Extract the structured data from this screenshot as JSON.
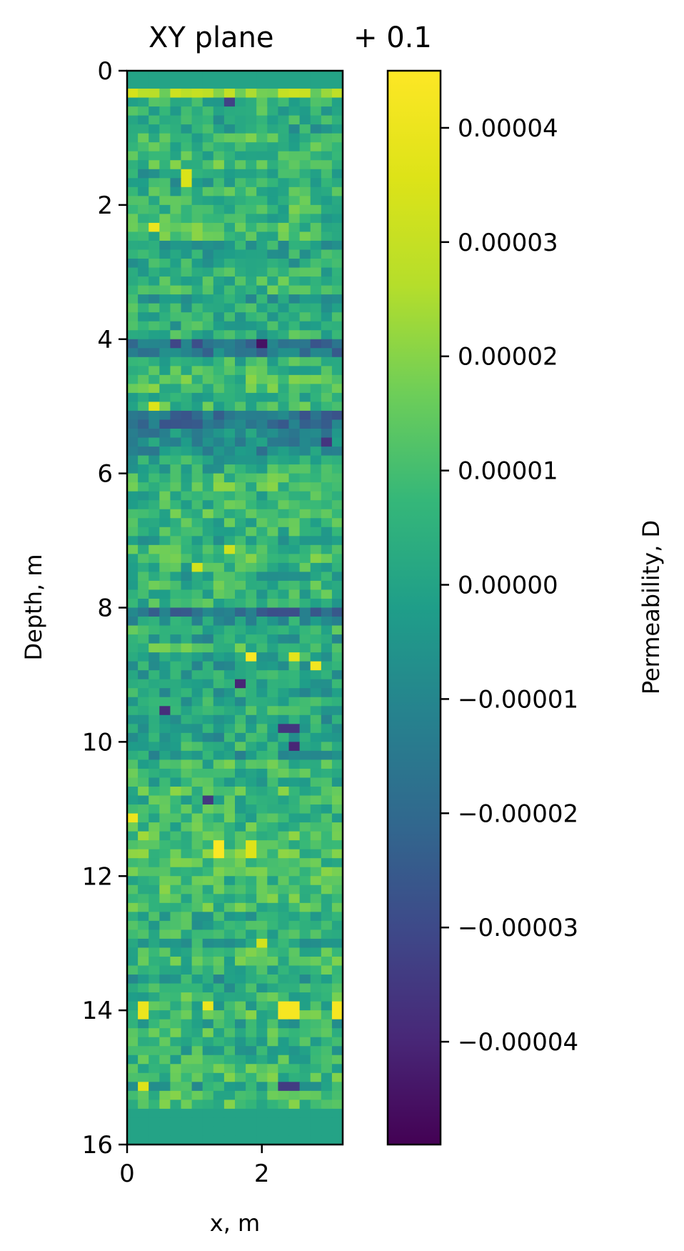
{
  "chart_data": {
    "type": "heatmap",
    "title": "XY plane",
    "offset_label": "+ 0.1",
    "xlabel": "x, m",
    "ylabel": "Depth, m",
    "xlim": [
      0,
      3.2
    ],
    "ylim": [
      16,
      0
    ],
    "x_ticks": [
      {
        "value": 0,
        "label": "0"
      },
      {
        "value": 2,
        "label": "2"
      }
    ],
    "y_ticks": [
      {
        "value": 0,
        "label": "0"
      },
      {
        "value": 2,
        "label": "2"
      },
      {
        "value": 4,
        "label": "4"
      },
      {
        "value": 6,
        "label": "6"
      },
      {
        "value": 8,
        "label": "8"
      },
      {
        "value": 10,
        "label": "10"
      },
      {
        "value": 12,
        "label": "12"
      },
      {
        "value": 14,
        "label": "14"
      },
      {
        "value": 16,
        "label": "16"
      }
    ],
    "grid": {
      "columns": 20,
      "rows": 120,
      "cell_width_m": 0.16,
      "cell_height_m": 0.1333
    },
    "colormap": "viridis",
    "colorbar": {
      "label": "Permeability, D",
      "range": [
        -4.9e-05,
        4.5e-05
      ],
      "ticks": [
        {
          "value": 4e-05,
          "label": "0.00004"
        },
        {
          "value": 3e-05,
          "label": "0.00003"
        },
        {
          "value": 2e-05,
          "label": "0.00002"
        },
        {
          "value": 1e-05,
          "label": "0.00001"
        },
        {
          "value": 0.0,
          "label": "0.00000"
        },
        {
          "value": -1e-05,
          "label": "−0.00001"
        },
        {
          "value": -2e-05,
          "label": "−0.00002"
        },
        {
          "value": -3e-05,
          "label": "−0.00003"
        },
        {
          "value": -4e-05,
          "label": "−0.00004"
        }
      ]
    },
    "layer_means": [
      {
        "depth_from": 0.0,
        "depth_to": 0.3,
        "value": 0.0
      },
      {
        "depth_from": 0.3,
        "depth_to": 0.45,
        "value": 2.2e-05
      },
      {
        "depth_from": 0.45,
        "depth_to": 4.0,
        "value": 5e-06
      },
      {
        "depth_from": 4.0,
        "depth_to": 4.2,
        "value": -2e-05
      },
      {
        "depth_from": 4.2,
        "depth_to": 5.1,
        "value": 8e-06
      },
      {
        "depth_from": 5.1,
        "depth_to": 5.7,
        "value": -1.2e-05
      },
      {
        "depth_from": 5.7,
        "depth_to": 8.0,
        "value": 6e-06
      },
      {
        "depth_from": 8.0,
        "depth_to": 8.15,
        "value": -2.2e-05
      },
      {
        "depth_from": 8.15,
        "depth_to": 10.4,
        "value": 3e-06
      },
      {
        "depth_from": 10.4,
        "depth_to": 12.4,
        "value": 9e-06
      },
      {
        "depth_from": 12.4,
        "depth_to": 15.5,
        "value": 5e-06
      },
      {
        "depth_from": 15.5,
        "depth_to": 16.0,
        "value": 0.0
      }
    ],
    "high_cells": [
      {
        "x": 0.4,
        "depth": 2.3,
        "value": 4e-05
      },
      {
        "x": 0.9,
        "depth": 1.6,
        "value": 3.5e-05
      },
      {
        "x": 0.4,
        "depth": 5.0,
        "value": 3.6e-05
      },
      {
        "x": 1.5,
        "depth": 7.1,
        "value": 3.2e-05
      },
      {
        "x": 1.0,
        "depth": 7.45,
        "value": 3.3e-05
      },
      {
        "x": 1.85,
        "depth": 8.7,
        "value": 4.4e-05
      },
      {
        "x": 2.5,
        "depth": 8.7,
        "value": 3.8e-05
      },
      {
        "x": 2.85,
        "depth": 8.85,
        "value": 4.2e-05
      },
      {
        "x": 1.35,
        "depth": 11.6,
        "value": 4.4e-05
      },
      {
        "x": 1.85,
        "depth": 11.6,
        "value": 3.6e-05
      },
      {
        "x": 0.1,
        "depth": 11.1,
        "value": 4e-05
      },
      {
        "x": 1.2,
        "depth": 13.9,
        "value": 4e-05
      },
      {
        "x": 2.4,
        "depth": 14.0,
        "value": 4.3e-05
      },
      {
        "x": 3.1,
        "depth": 14.0,
        "value": 4.3e-05
      },
      {
        "x": 0.25,
        "depth": 14.0,
        "value": 4e-05
      },
      {
        "x": 0.25,
        "depth": 15.15,
        "value": 3.6e-05
      },
      {
        "x": 2.0,
        "depth": 13.0,
        "value": 3.3e-05
      }
    ],
    "low_cells": [
      {
        "x": 2.0,
        "depth": 4.05,
        "value": -4.5e-05
      },
      {
        "x": 1.2,
        "depth": 10.9,
        "value": -3.5e-05
      },
      {
        "x": 0.5,
        "depth": 9.5,
        "value": -3.8e-05
      },
      {
        "x": 1.7,
        "depth": 9.15,
        "value": -4e-05
      },
      {
        "x": 2.4,
        "depth": 9.8,
        "value": -3.6e-05
      },
      {
        "x": 2.45,
        "depth": 10.1,
        "value": -4e-05
      },
      {
        "x": 2.4,
        "depth": 15.1,
        "value": -3.4e-05
      },
      {
        "x": 1.5,
        "depth": 0.5,
        "value": -3.2e-05
      },
      {
        "x": 3.0,
        "depth": 5.5,
        "value": -3.6e-05
      }
    ]
  }
}
